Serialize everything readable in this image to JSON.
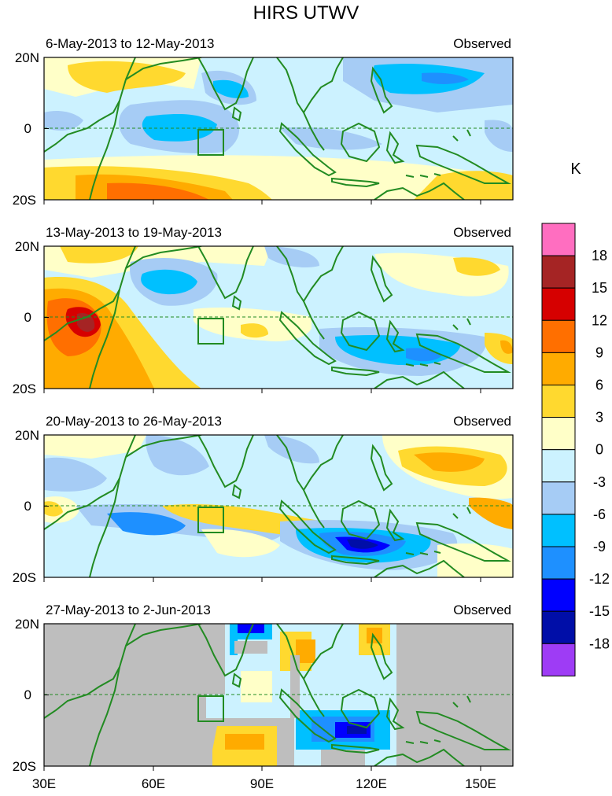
{
  "figure": {
    "title": "HIRS UTWV",
    "colorbar_unit": "K"
  },
  "panels": [
    {
      "date_range": "6-May-2013 to 12-May-2013",
      "label": "Observed"
    },
    {
      "date_range": "13-May-2013 to 19-May-2013",
      "label": "Observed"
    },
    {
      "date_range": "20-May-2013 to 26-May-2013",
      "label": "Observed"
    },
    {
      "date_range": "27-May-2013 to 2-Jun-2013",
      "label": "Observed"
    }
  ],
  "lat_ticks": [
    "20N",
    "0",
    "20S"
  ],
  "lon_ticks": [
    "30E",
    "60E",
    "90E",
    "120E",
    "150E"
  ],
  "colorbar": {
    "labels": [
      "18",
      "15",
      "12",
      "9",
      "6",
      "3",
      "0",
      "-3",
      "-6",
      "-9",
      "-12",
      "-15",
      "-18"
    ],
    "colors": [
      "#ff6ec0",
      "#a52424",
      "#d60000",
      "#ff6f00",
      "#ffab00",
      "#ffd92f",
      "#ffffc8",
      "#ccf2ff",
      "#a6ccf5",
      "#00c0ff",
      "#1e90ff",
      "#0000ff",
      "#000ea8",
      "#9e3cf5"
    ]
  },
  "colors": {
    "coast": "#228b22",
    "missing": "#bebebe",
    "equator": "#228b22"
  }
}
